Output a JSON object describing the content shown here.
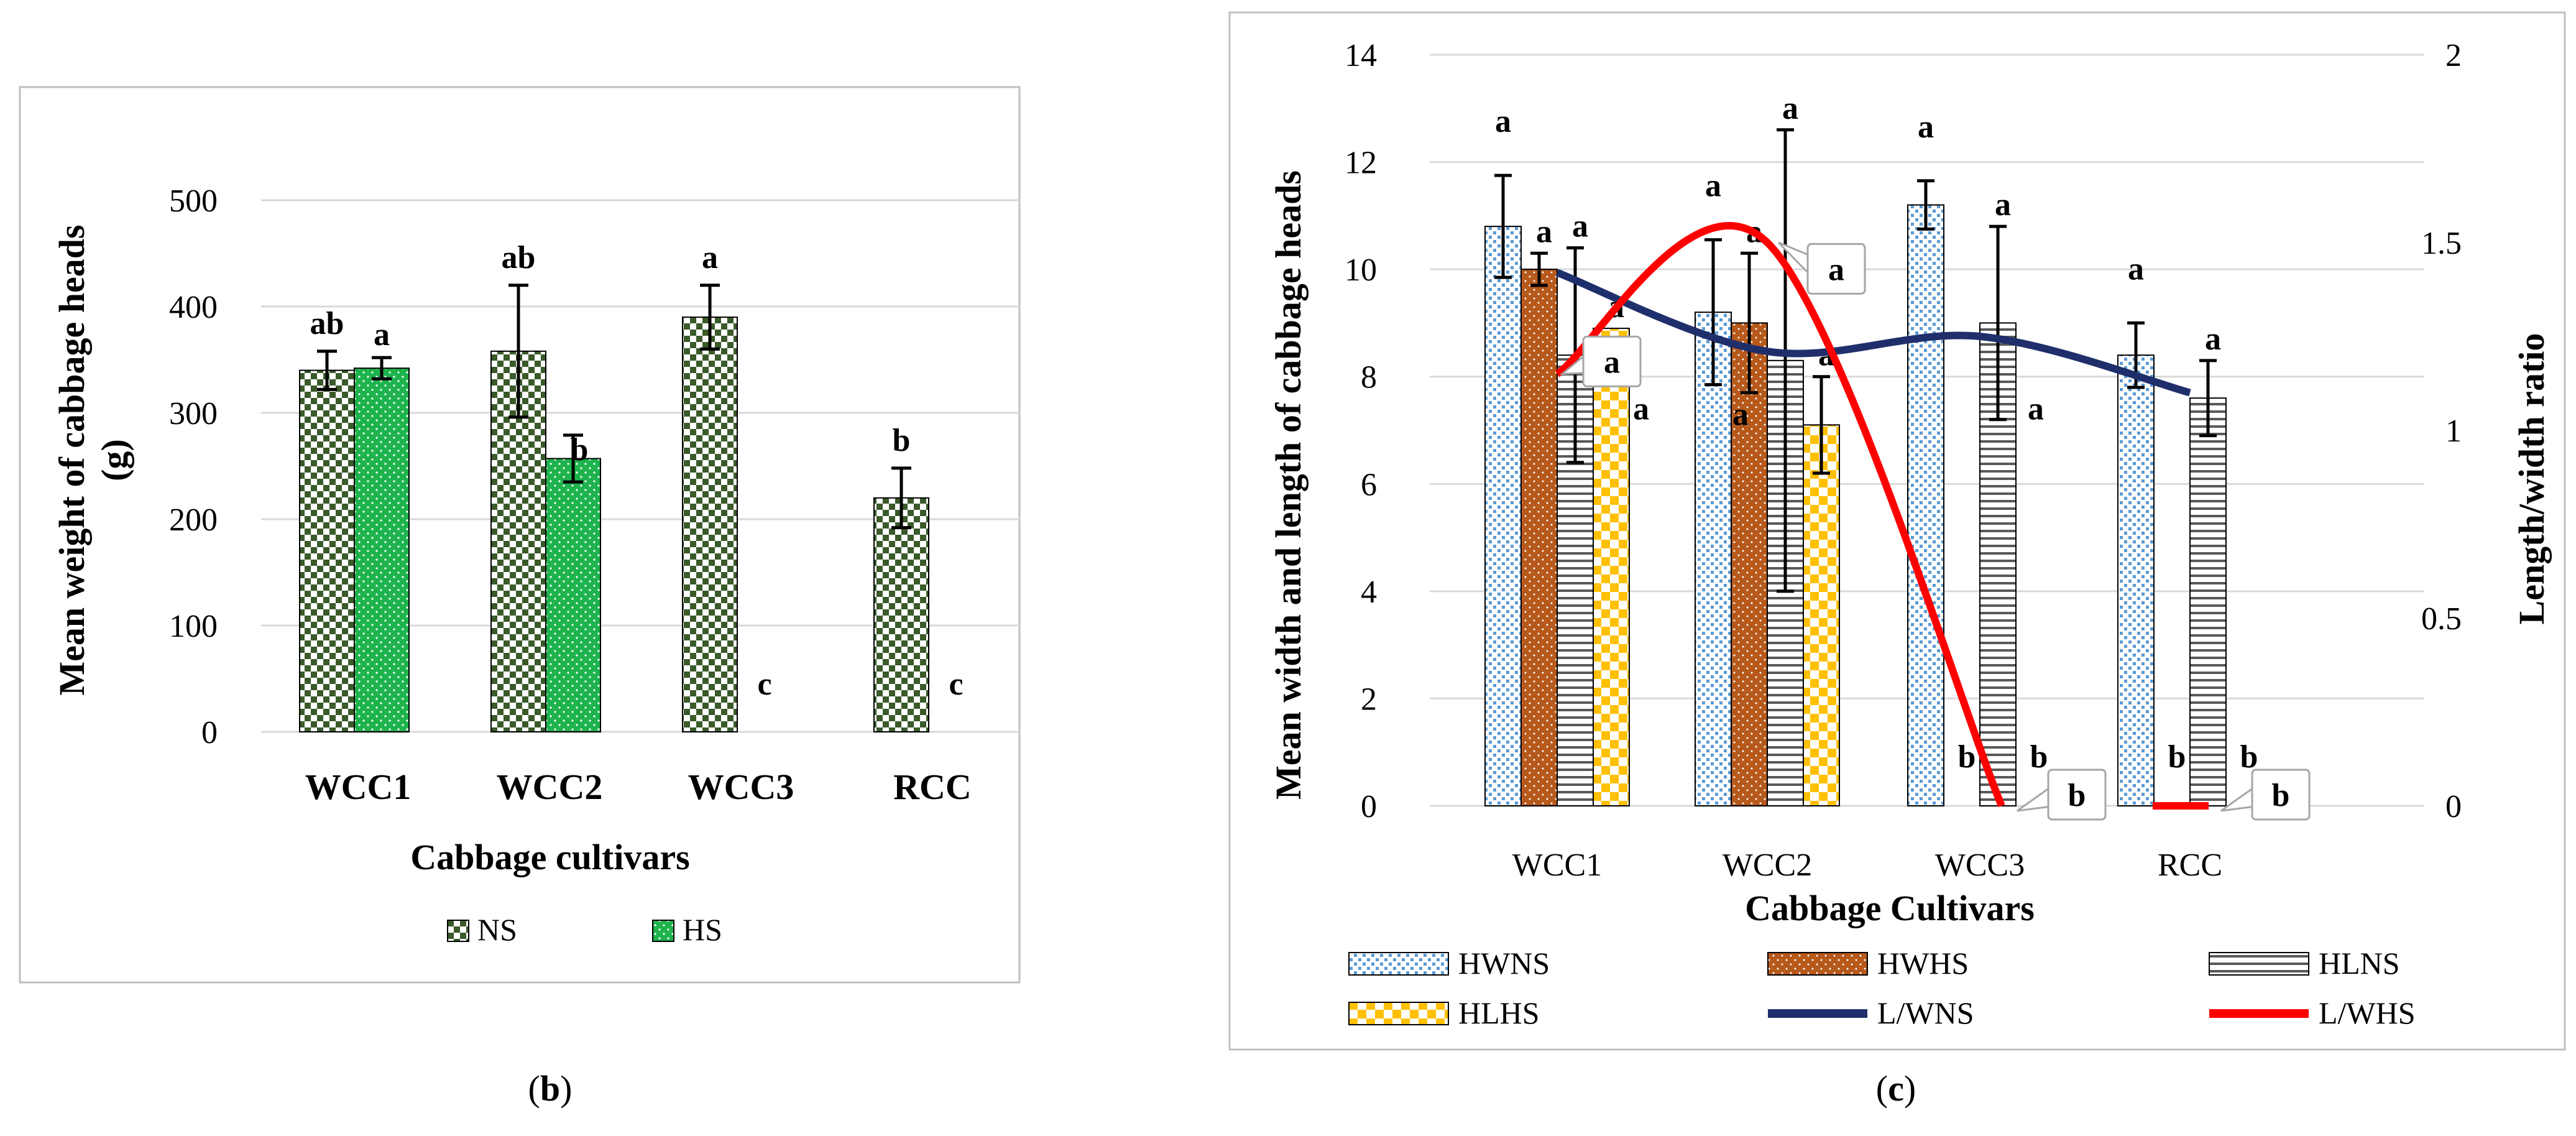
{
  "colors": {
    "ns_dark": "#3a5a2a",
    "hs_green": "#1eb34d",
    "hwns_blue": "#5b9bd5",
    "hwhs_brown": "#b6591b",
    "hlns_gray": "#595959",
    "hlhs_yellow": "#ffc000",
    "lwns_navy": "#1f2f6b",
    "lwhs_red": "#ff0000",
    "grid": "#d9d9d9",
    "frame": "#bfbfbf"
  },
  "chart_data": [
    {
      "panel": "b",
      "type": "bar",
      "caption_open": "(",
      "caption_letter": "b",
      "caption_close": ")",
      "xlabel": "Cabbage cultivars",
      "ylabel_line1": "Mean weight of cabbage heads",
      "ylabel_line2": "(g)",
      "ylim": [
        0,
        500
      ],
      "yticks": [
        "0",
        "100",
        "200",
        "300",
        "400",
        "500"
      ],
      "categories": [
        "WCC1",
        "WCC2",
        "WCC3",
        "RCC"
      ],
      "series": [
        {
          "name": "NS",
          "values": [
            340,
            358,
            390,
            220
          ],
          "errors": [
            18,
            62,
            30,
            28
          ],
          "letters": [
            "ab",
            "ab",
            "a",
            "b"
          ]
        },
        {
          "name": "HS",
          "values": [
            342,
            257,
            0,
            0
          ],
          "errors": [
            10,
            22,
            0,
            0
          ],
          "letters": [
            "a",
            "b",
            "c",
            "c"
          ]
        }
      ],
      "legend": [
        "NS",
        "HS"
      ]
    },
    {
      "panel": "c",
      "type": "bar",
      "caption_open": "(",
      "caption_letter": "c",
      "caption_close": ")",
      "xlabel": "Cabbage Cultivars",
      "ylabel": "Mean width and length of cabbage heads",
      "ylabel_right": "Length/width ratio",
      "ylim": [
        0,
        14
      ],
      "ylim_right": [
        0,
        2
      ],
      "yticks": [
        "0",
        "2",
        "4",
        "6",
        "8",
        "10",
        "12",
        "14"
      ],
      "yticks_right": [
        "0",
        "0.5",
        "1",
        "1.5",
        "2"
      ],
      "categories": [
        "WCC1",
        "WCC2",
        "WCC3",
        "RCC"
      ],
      "series": [
        {
          "name": "HWNS",
          "values": [
            10.8,
            9.2,
            11.2,
            8.4
          ],
          "errors": [
            0.95,
            1.35,
            0.45,
            0.6
          ],
          "letters": [
            "a",
            "a",
            "a",
            "a"
          ]
        },
        {
          "name": "HWHS",
          "values": [
            10.0,
            9.0,
            0,
            0
          ],
          "errors": [
            0.3,
            1.3,
            0,
            0
          ],
          "letters": [
            "a",
            "a",
            "b",
            "b"
          ]
        },
        {
          "name": "HLNS",
          "values": [
            8.4,
            8.3,
            9.0,
            7.6
          ],
          "errors": [
            2.0,
            4.3,
            1.8,
            0.7
          ],
          "letters": [
            "a",
            "a",
            "a",
            "a"
          ]
        },
        {
          "name": "HLHS",
          "values": [
            8.9,
            7.1,
            0,
            0
          ],
          "errors": [
            0,
            0.9,
            0,
            0
          ],
          "letters": [
            "a",
            "a",
            "b",
            "b"
          ]
        }
      ],
      "line_series": [
        {
          "name": "L/WNS",
          "values": [
            1.42,
            1.21,
            1.25,
            1.1
          ]
        },
        {
          "name": "L/WHS",
          "values": [
            1.15,
            1.5,
            0,
            0
          ]
        }
      ],
      "lower_letters": [
        "a",
        "a",
        "a"
      ],
      "callouts": [
        "a",
        "a",
        "b",
        "b"
      ],
      "legend": [
        "HWNS",
        "HWHS",
        "HLNS",
        "HLHS",
        "L/WNS",
        "L/WHS"
      ]
    }
  ]
}
